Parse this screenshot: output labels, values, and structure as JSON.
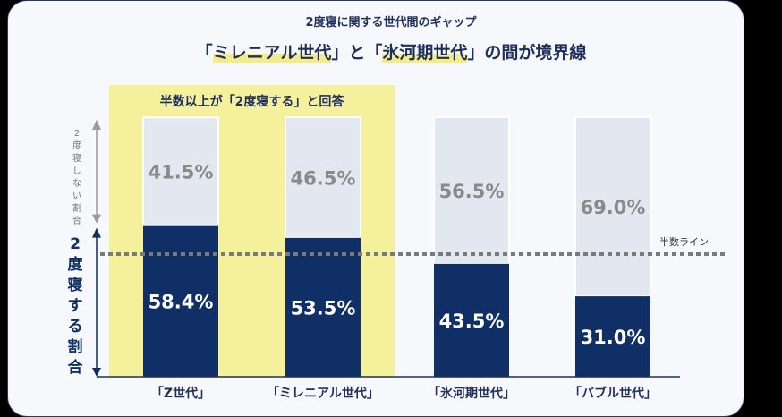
{
  "header": {
    "subtitle": "2度寝に関する世代間のギャップ",
    "title_prefix": "「",
    "title_hl1": "ミレニアル世代",
    "title_mid": "」と「",
    "title_hl2": "氷河期世代",
    "title_suffix": "」の間が境界線"
  },
  "chart_data": {
    "type": "bar",
    "stacked": true,
    "categories": [
      "「Z世代」",
      "「ミレニアル世代」",
      "「氷河期世代」",
      "「バブル世代」"
    ],
    "series": [
      {
        "name": "2度寝する割合",
        "values": [
          58.4,
          53.5,
          43.5,
          31.0
        ],
        "labels": [
          "58.4%",
          "53.5%",
          "43.5%",
          "31.0%"
        ],
        "color": "#0f2f66"
      },
      {
        "name": "2度寝しない割合",
        "values": [
          41.5,
          46.5,
          56.5,
          69.0
        ],
        "labels": [
          "41.5%",
          "46.5%",
          "56.5%",
          "69.0%"
        ],
        "color": "#e3e8f0"
      }
    ],
    "ylim": [
      0,
      100
    ],
    "reference_line": {
      "value": 50,
      "label": "半数ライン"
    },
    "highlight": {
      "categories": [
        0,
        1
      ],
      "label": "半数以上が「2度寝する」と回答",
      "color": "#f5f09c"
    },
    "left_axis_top_label": "2度寝しない割合",
    "left_axis_bottom_label": "2度寝する割合"
  },
  "colors": {
    "navy": "#0f2f66",
    "light": "#e3e8f0",
    "grey_text": "#8a8a8a",
    "highlight": "#f5f09c"
  }
}
